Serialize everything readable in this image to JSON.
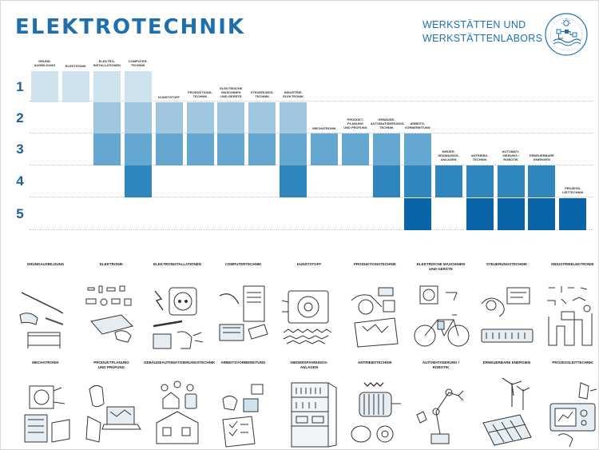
{
  "header": {
    "title": "ELEKTROTECHNIK",
    "subtitle_line1": "WERKSTÄTTEN UND",
    "subtitle_line2": "WERKSTÄTTENLABORS",
    "logo_icon": "werkstatt-logo-icon"
  },
  "levels": [
    "1",
    "2",
    "3",
    "4",
    "5"
  ],
  "colors": {
    "level1": "#cfe3ee",
    "level2": "#9fc8e0",
    "level3": "#64a8d2",
    "level4": "#2f86bf",
    "level5": "#0b64a8",
    "title": "#1f6fae"
  },
  "columns": [
    {
      "label": "GRUND-\nAUSBILDUNG",
      "levels": [
        1
      ]
    },
    {
      "label": "ELEKTRONIK",
      "levels": [
        1
      ]
    },
    {
      "label": "ELEKTRO-\nINSTALLATIONEN",
      "levels": [
        1,
        2,
        3
      ]
    },
    {
      "label": "COMPUTER-\nTECHNIK",
      "levels": [
        1,
        2,
        3,
        4
      ]
    },
    {
      "label": "KUNSTSTOFF",
      "levels": [
        2,
        3
      ]
    },
    {
      "label": "PRODUKTIONS-\nTECHNIK",
      "levels": [
        2,
        3
      ]
    },
    {
      "label": "ELEKTRISCHE\nMASCHINEN\nUND GERÄTE",
      "levels": [
        2,
        3
      ]
    },
    {
      "label": "STEUERUNGS-\nTECHNIK",
      "levels": [
        2,
        3
      ]
    },
    {
      "label": "INDUSTRIE-\nELEKTRONIK",
      "levels": [
        2,
        3,
        4
      ]
    },
    {
      "label": "MECHATRONIK",
      "levels": [
        3
      ]
    },
    {
      "label": "PRODUKT-\nPLANUNG\nUND PRÜFUNG",
      "levels": [
        3
      ]
    },
    {
      "label": "GEBÄUDE-\nAUTOMATISIERUNGS-\nTECHNIK",
      "levels": [
        3,
        4
      ]
    },
    {
      "label": "ARBEITS-\nVORBEREITUNG",
      "levels": [
        3,
        4,
        5
      ]
    },
    {
      "label": "NIEDER-\nSPANNUNGS-\nANLAGEN",
      "levels": [
        4
      ]
    },
    {
      "label": "ANTRIEBS-\nTECHNIK",
      "levels": [
        4,
        5
      ]
    },
    {
      "label": "AUTOMATI-\nSIERUNG /\nROBOTIK",
      "levels": [
        4,
        5
      ]
    },
    {
      "label": "ERNEUERBARE\nENERGIEN",
      "levels": [
        4,
        5
      ]
    },
    {
      "label": "PROZESS-\nLEITTECHNIK",
      "levels": [
        5
      ]
    }
  ],
  "tiles_row1": [
    {
      "label": "GRUNDAUSBILDUNG",
      "icon": "hand-tools-icon"
    },
    {
      "label": "ELEKTRONIK",
      "icon": "electronic-components-icon"
    },
    {
      "label": "ELEKTROINSTALLATIONEN",
      "icon": "socket-icon"
    },
    {
      "label": "COMPUTERTECHNIK",
      "icon": "computer-icon"
    },
    {
      "label": "KUNSTSTOFF",
      "icon": "plastic-parts-icon"
    },
    {
      "label": "PRODUKTIONSTECHNIK",
      "icon": "production-icon"
    },
    {
      "label": "ELEKTRISCHE MASCHINEN\nUND GERÄTE",
      "icon": "ebike-icon"
    },
    {
      "label": "STEUERUNGSTECHNIK",
      "icon": "control-unit-icon"
    },
    {
      "label": "INDUSTRIEELEKTRONIK",
      "icon": "industrial-electronics-icon"
    }
  ],
  "tiles_row2": [
    {
      "label": "MECHATRONIK",
      "icon": "mechatronics-icon"
    },
    {
      "label": "PRODUKTPLANUNG\nUND PRÜFUNG",
      "icon": "laptop-planning-icon"
    },
    {
      "label": "GEBÄUDEAUTOMATISIERUNGSTECHNIK",
      "icon": "smart-home-icon"
    },
    {
      "label": "ARBEITSVORBEREITUNG",
      "icon": "checklist-icon"
    },
    {
      "label": "NIEDERSPANNUNGS-\nANLAGEN",
      "icon": "switch-cabinet-icon"
    },
    {
      "label": "ANTRIEBSTECHNIK",
      "icon": "electric-motor-icon"
    },
    {
      "label": "AUTOMATISIERUNG /\nROBOTIK",
      "icon": "robot-arm-icon"
    },
    {
      "label": "ERNEUERBARE ENERGIEN",
      "icon": "solar-wind-icon"
    },
    {
      "label": "PROZESSLEITTECHNIK",
      "icon": "control-panel-icon"
    }
  ]
}
